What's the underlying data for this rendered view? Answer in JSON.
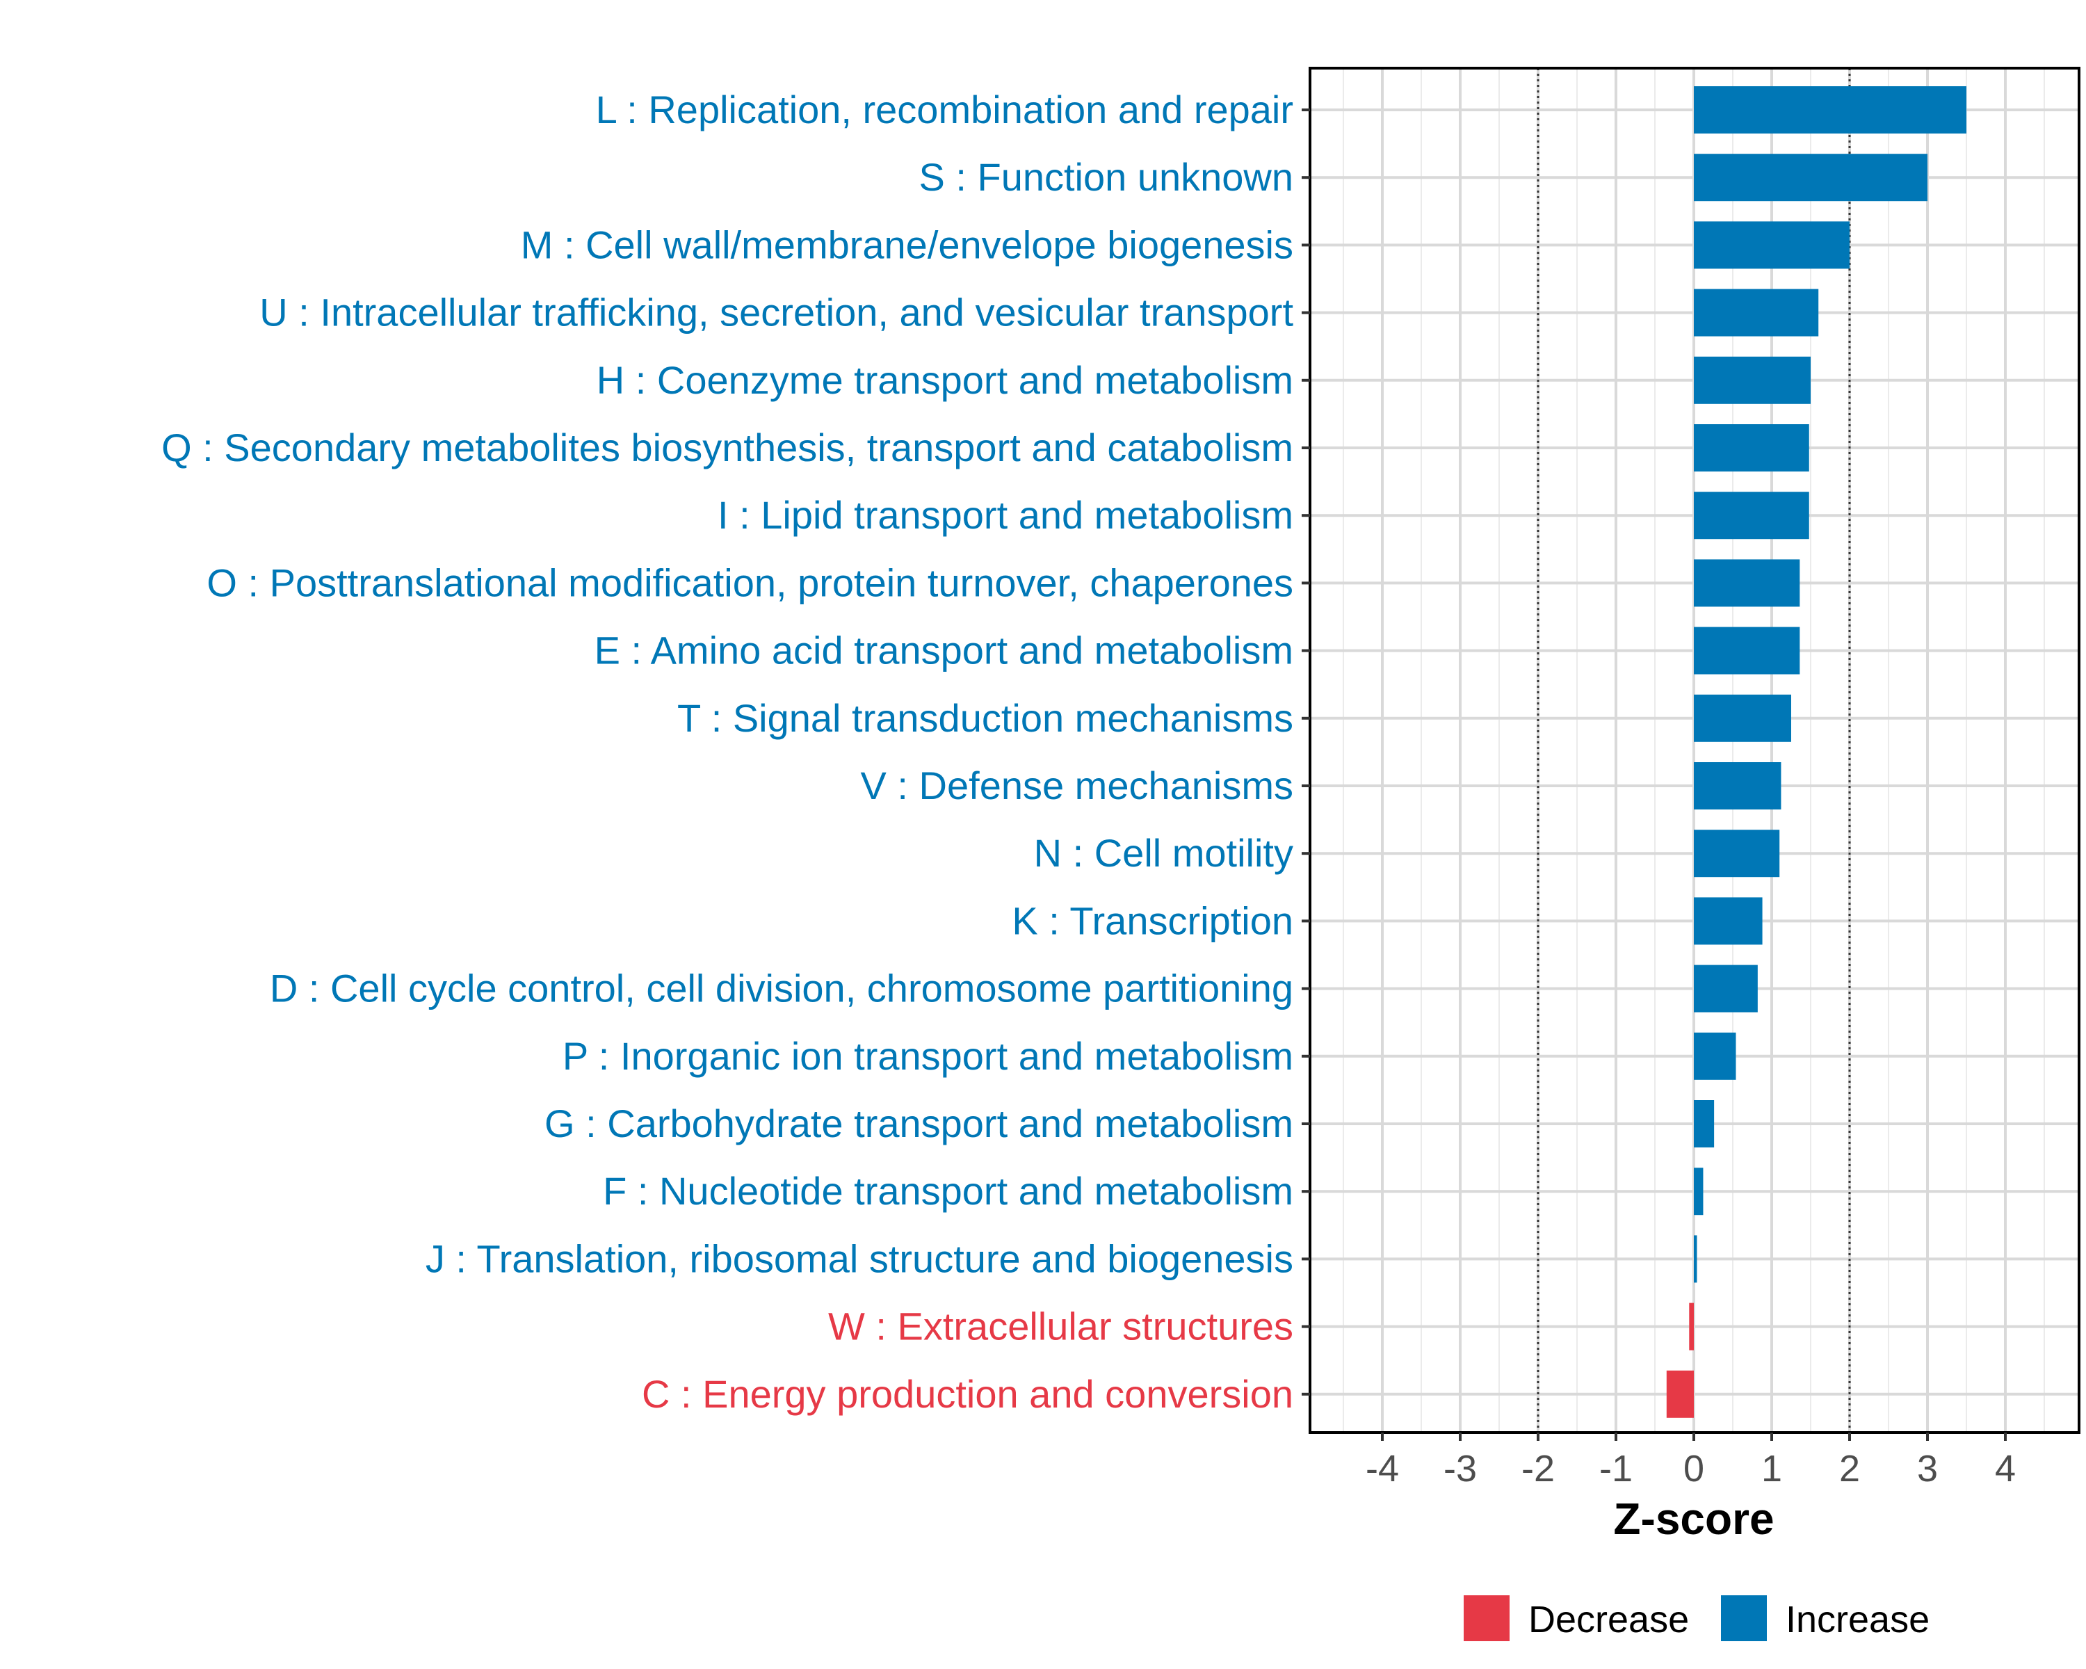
{
  "chart_data": {
    "type": "bar",
    "orientation": "horizontal",
    "title": "",
    "xlabel": "Z-score",
    "ylabel": "",
    "xlim": [
      -4.9,
      5.0
    ],
    "xticks": [
      -4,
      -3,
      -2,
      -1,
      0,
      1,
      2,
      3,
      4
    ],
    "xtick_labels": [
      "-4",
      "-3",
      "-2",
      "-1",
      "0",
      "1",
      "2",
      "3",
      "4"
    ],
    "grid": true,
    "reference_lines": [
      -2,
      2
    ],
    "categories": [
      "L : Replication, recombination and repair",
      "S : Function unknown",
      "M : Cell wall/membrane/envelope biogenesis",
      "U : Intracellular trafficking, secretion, and vesicular transport",
      "H : Coenzyme transport and metabolism",
      "Q : Secondary metabolites biosynthesis, transport and catabolism",
      "I : Lipid transport and metabolism",
      "O : Posttranslational modification, protein turnover, chaperones",
      "E : Amino acid transport and metabolism",
      "T : Signal transduction mechanisms",
      "V : Defense mechanisms",
      "N : Cell motility",
      "K : Transcription",
      "D : Cell cycle control, cell division, chromosome partitioning",
      "P : Inorganic ion transport and metabolism",
      "G : Carbohydrate transport and metabolism",
      "F : Nucleotide transport and metabolism",
      "J : Translation, ribosomal structure and biogenesis",
      "W : Extracellular structures",
      "C : Energy production and conversion"
    ],
    "values": [
      3.5,
      3.0,
      2.0,
      1.6,
      1.5,
      1.48,
      1.48,
      1.36,
      1.36,
      1.25,
      1.12,
      1.1,
      0.88,
      0.82,
      0.54,
      0.26,
      0.12,
      0.04,
      -0.06,
      -0.35
    ],
    "groups": [
      "Increase",
      "Increase",
      "Increase",
      "Increase",
      "Increase",
      "Increase",
      "Increase",
      "Increase",
      "Increase",
      "Increase",
      "Increase",
      "Increase",
      "Increase",
      "Increase",
      "Increase",
      "Increase",
      "Increase",
      "Increase",
      "Decrease",
      "Decrease"
    ],
    "legend": {
      "placement": "bottom",
      "entries": [
        {
          "label": "Decrease",
          "color": "#E63946"
        },
        {
          "label": "Increase",
          "color": "#0077B6"
        }
      ]
    }
  }
}
